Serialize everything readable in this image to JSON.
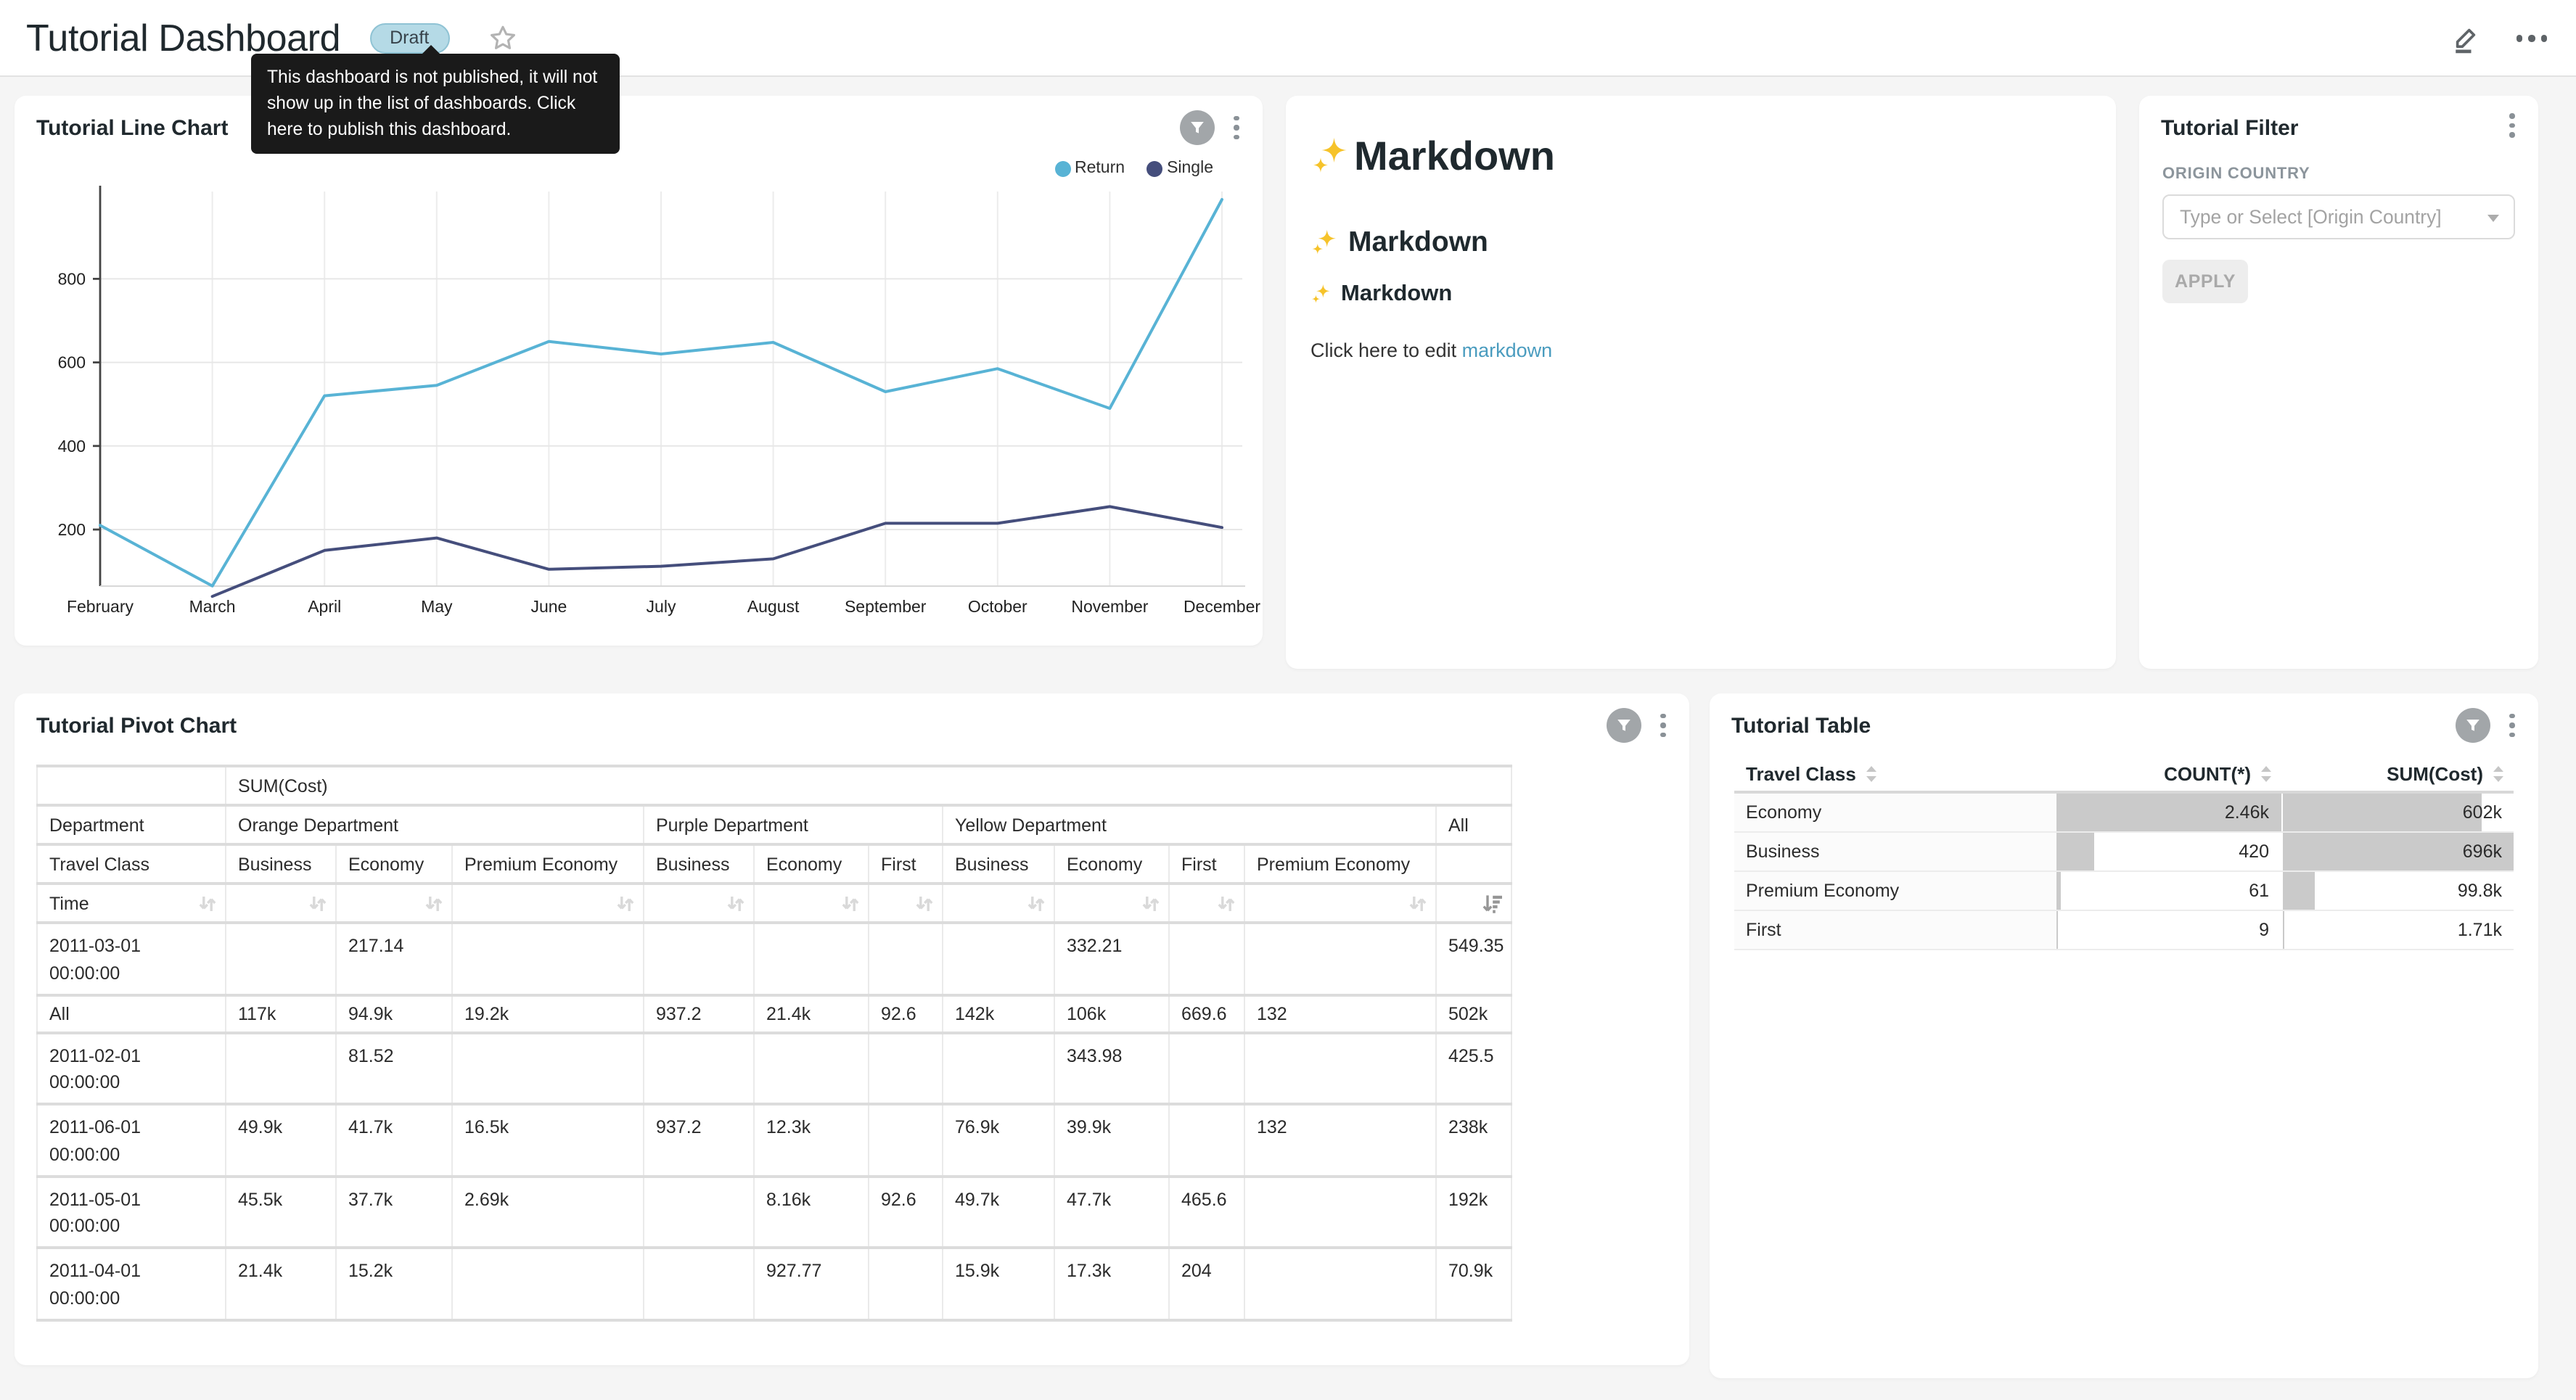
{
  "header": {
    "title": "Tutorial Dashboard",
    "status_badge": "Draft",
    "tooltip": "This dashboard is not published, it will not show up in the list of dashboards. Click here to publish this dashboard."
  },
  "line_chart_panel": {
    "title": "Tutorial Line Chart"
  },
  "chart_data": {
    "type": "line",
    "title": "Tutorial Line Chart",
    "categories": [
      "February",
      "March",
      "April",
      "May",
      "June",
      "July",
      "August",
      "September",
      "October",
      "November",
      "December"
    ],
    "yticks": [
      200,
      400,
      600,
      800
    ],
    "ylim": [
      0,
      1000
    ],
    "grid": true,
    "legend_position": "top-right",
    "series": [
      {
        "name": "Return",
        "color": "#58B3D5",
        "values": [
          210,
          65,
          520,
          545,
          650,
          620,
          648,
          530,
          585,
          490,
          990
        ]
      },
      {
        "name": "Single",
        "color": "#454E7C",
        "values": [
          null,
          40,
          150,
          180,
          105,
          112,
          130,
          215,
          215,
          255,
          205
        ]
      }
    ]
  },
  "markdown_panel": {
    "sparkle_emoji": "✨",
    "h1": "Markdown",
    "h2": "Markdown",
    "h3": "Markdown",
    "paragraph_prefix": "Click here to edit ",
    "link_text": "markdown"
  },
  "filter_panel": {
    "title": "Tutorial Filter",
    "field_label": "ORIGIN COUNTRY",
    "select_placeholder": "Type or Select [Origin Country]",
    "apply_label": "APPLY"
  },
  "pivot_panel": {
    "title": "Tutorial Pivot Chart",
    "metric_label": "SUM(Cost)",
    "department_label": "Department",
    "travel_class_label": "Travel Class",
    "time_label": "Time",
    "col_groups": [
      {
        "label": "Orange Department",
        "cols": [
          "Business",
          "Economy",
          "Premium Economy"
        ]
      },
      {
        "label": "Purple Department",
        "cols": [
          "Business",
          "Economy",
          "First"
        ]
      },
      {
        "label": "Yellow Department",
        "cols": [
          "Business",
          "Economy",
          "First",
          "Premium Economy"
        ]
      },
      {
        "label": "All",
        "cols": [
          ""
        ]
      }
    ],
    "rows": [
      {
        "label": "2011-03-01\n00:00:00",
        "values": [
          "",
          "217.14",
          "",
          "",
          "",
          "",
          "",
          "332.21",
          "",
          "",
          "549.35"
        ]
      },
      {
        "label": "All",
        "values": [
          "117k",
          "94.9k",
          "19.2k",
          "937.2",
          "21.4k",
          "92.6",
          "142k",
          "106k",
          "669.6",
          "132",
          "502k"
        ]
      },
      {
        "label": "2011-02-01\n00:00:00",
        "values": [
          "",
          "81.52",
          "",
          "",
          "",
          "",
          "",
          "343.98",
          "",
          "",
          "425.5"
        ]
      },
      {
        "label": "2011-06-01\n00:00:00",
        "values": [
          "49.9k",
          "41.7k",
          "16.5k",
          "937.2",
          "12.3k",
          "",
          "76.9k",
          "39.9k",
          "",
          "132",
          "238k"
        ]
      },
      {
        "label": "2011-05-01\n00:00:00",
        "values": [
          "45.5k",
          "37.7k",
          "2.69k",
          "",
          "8.16k",
          "92.6",
          "49.7k",
          "47.7k",
          "465.6",
          "",
          "192k"
        ]
      },
      {
        "label": "2011-04-01\n00:00:00",
        "values": [
          "21.4k",
          "15.2k",
          "",
          "",
          "927.77",
          "",
          "15.9k",
          "17.3k",
          "204",
          "",
          "70.9k"
        ]
      }
    ]
  },
  "table_panel": {
    "title": "Tutorial Table",
    "columns": [
      "Travel Class",
      "COUNT(*)",
      "SUM(Cost)"
    ],
    "bar_color": "#CACACA",
    "rows": [
      {
        "travel_class": "Economy",
        "count": "2.46k",
        "count_pct": 100,
        "sum": "602k",
        "sum_pct": 86.5
      },
      {
        "travel_class": "Business",
        "count": "420",
        "count_pct": 17,
        "sum": "696k",
        "sum_pct": 100
      },
      {
        "travel_class": "Premium Economy",
        "count": "61",
        "count_pct": 2.5,
        "sum": "99.8k",
        "sum_pct": 14.3
      },
      {
        "travel_class": "First",
        "count": "9",
        "count_pct": 0.4,
        "sum": "1.71k",
        "sum_pct": 0.3
      }
    ]
  }
}
